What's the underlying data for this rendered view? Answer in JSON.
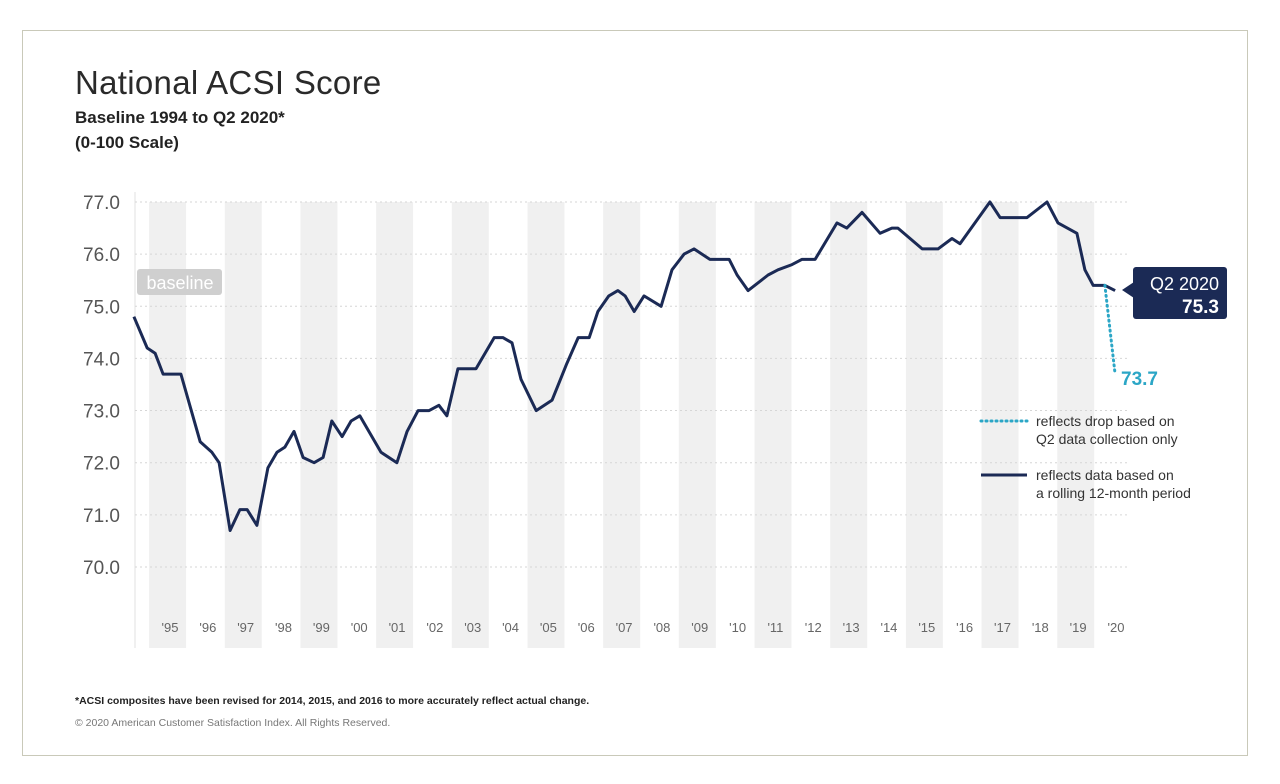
{
  "chart_data": {
    "type": "line",
    "title": "National ACSI Score",
    "subtitle": [
      "Baseline 1994 to Q2 2020*",
      "(0-100 Scale)"
    ],
    "xlabel": "",
    "ylabel": "",
    "ylim": [
      69.3,
      77.0
    ],
    "xlim": [
      1994.6,
      2020.6
    ],
    "yticks": [
      "70.0",
      "71.0",
      "72.0",
      "73.0",
      "74.0",
      "75.0",
      "76.0",
      "77.0"
    ],
    "xticks": [
      "'95",
      "'96",
      "'97",
      "'98",
      "'99",
      "'00",
      "'01",
      "'02",
      "'03",
      "'04",
      "'05",
      "'06",
      "'07",
      "'08",
      "'09",
      "'10",
      "'11",
      "'12",
      "'13",
      "'14",
      "'15",
      "'16",
      "'17",
      "'18",
      "'19",
      "'20"
    ],
    "grid": "horizontal dotted",
    "alternating_year_bands": true,
    "series": [
      {
        "name": "reflects data based on a rolling 12-month period",
        "color": "#1b2a55",
        "style": "solid",
        "points": [
          [
            1994.6,
            74.8
          ],
          [
            1994.95,
            74.2
          ],
          [
            1995.16,
            74.1
          ],
          [
            1995.37,
            73.7
          ],
          [
            1995.84,
            73.7
          ],
          [
            1996.35,
            72.4
          ],
          [
            1996.66,
            72.2
          ],
          [
            1996.85,
            72.0
          ],
          [
            1997.14,
            70.7
          ],
          [
            1997.4,
            71.1
          ],
          [
            1997.59,
            71.1
          ],
          [
            1997.85,
            70.8
          ],
          [
            1998.14,
            71.9
          ],
          [
            1998.38,
            72.2
          ],
          [
            1998.59,
            72.3
          ],
          [
            1998.83,
            72.6
          ],
          [
            1999.07,
            72.1
          ],
          [
            1999.36,
            72.0
          ],
          [
            1999.6,
            72.1
          ],
          [
            1999.83,
            72.8
          ],
          [
            2000.1,
            72.5
          ],
          [
            2000.34,
            72.8
          ],
          [
            2000.57,
            72.9
          ],
          [
            2001.13,
            72.2
          ],
          [
            2001.55,
            72.0
          ],
          [
            2001.82,
            72.6
          ],
          [
            2002.11,
            73.0
          ],
          [
            2002.4,
            73.0
          ],
          [
            2002.66,
            73.1
          ],
          [
            2002.87,
            72.9
          ],
          [
            2003.16,
            73.8
          ],
          [
            2003.64,
            73.8
          ],
          [
            2004.12,
            74.4
          ],
          [
            2004.35,
            74.4
          ],
          [
            2004.59,
            74.3
          ],
          [
            2004.83,
            73.6
          ],
          [
            2005.23,
            73.0
          ],
          [
            2005.65,
            73.2
          ],
          [
            2006.04,
            73.9
          ],
          [
            2006.34,
            74.4
          ],
          [
            2006.63,
            74.4
          ],
          [
            2006.86,
            74.9
          ],
          [
            2007.15,
            75.2
          ],
          [
            2007.39,
            75.3
          ],
          [
            2007.58,
            75.2
          ],
          [
            2007.82,
            74.9
          ],
          [
            2008.08,
            75.2
          ],
          [
            2008.53,
            75.0
          ],
          [
            2008.82,
            75.7
          ],
          [
            2009.14,
            76.0
          ],
          [
            2009.4,
            76.1
          ],
          [
            2009.82,
            75.9
          ],
          [
            2010.33,
            75.9
          ],
          [
            2010.54,
            75.6
          ],
          [
            2010.83,
            75.3
          ],
          [
            2011.36,
            75.6
          ],
          [
            2011.62,
            75.7
          ],
          [
            2011.99,
            75.8
          ],
          [
            2012.25,
            75.9
          ],
          [
            2012.6,
            75.9
          ],
          [
            2013.18,
            76.6
          ],
          [
            2013.44,
            76.5
          ],
          [
            2013.84,
            76.8
          ],
          [
            2014.32,
            76.4
          ],
          [
            2014.63,
            76.5
          ],
          [
            2014.79,
            76.5
          ],
          [
            2015.43,
            76.1
          ],
          [
            2015.85,
            76.1
          ],
          [
            2016.22,
            76.3
          ],
          [
            2016.43,
            76.2
          ],
          [
            2017.22,
            77.0
          ],
          [
            2017.49,
            76.7
          ],
          [
            2018.2,
            76.7
          ],
          [
            2018.73,
            77.0
          ],
          [
            2019.02,
            76.6
          ],
          [
            2019.52,
            76.4
          ],
          [
            2019.73,
            75.7
          ],
          [
            2019.95,
            75.4
          ],
          [
            2020.26,
            75.4
          ],
          [
            2020.53,
            75.3
          ]
        ]
      },
      {
        "name": "reflects drop based on Q2 data collection only",
        "color": "#2ba6c6",
        "style": "dotted",
        "points": [
          [
            2020.26,
            75.4
          ],
          [
            2020.53,
            73.7
          ]
        ]
      }
    ],
    "annotations": {
      "baseline_label": "baseline",
      "callout_period": "Q2 2020",
      "callout_value": "75.3",
      "drop_value": "73.7"
    },
    "legend": {
      "placement": "right",
      "items": [
        {
          "lines": [
            "reflects drop based on",
            "Q2 data collection only"
          ],
          "style": "dotted",
          "color": "#2ba6c6"
        },
        {
          "lines": [
            "reflects data based on",
            "a rolling 12-month period"
          ],
          "style": "solid",
          "color": "#1b2a55"
        }
      ]
    }
  },
  "footnote": "*ACSI composites have been revised for 2014, 2015, and 2016 to more accurately reflect actual change.",
  "copyright": "© 2020 American Customer Satisfaction Index. All Rights Reserved.",
  "colors": {
    "line": "#1b2a55",
    "drop": "#2ba6c6",
    "band": "#f0f0f0",
    "callout": "#1b2a55"
  }
}
